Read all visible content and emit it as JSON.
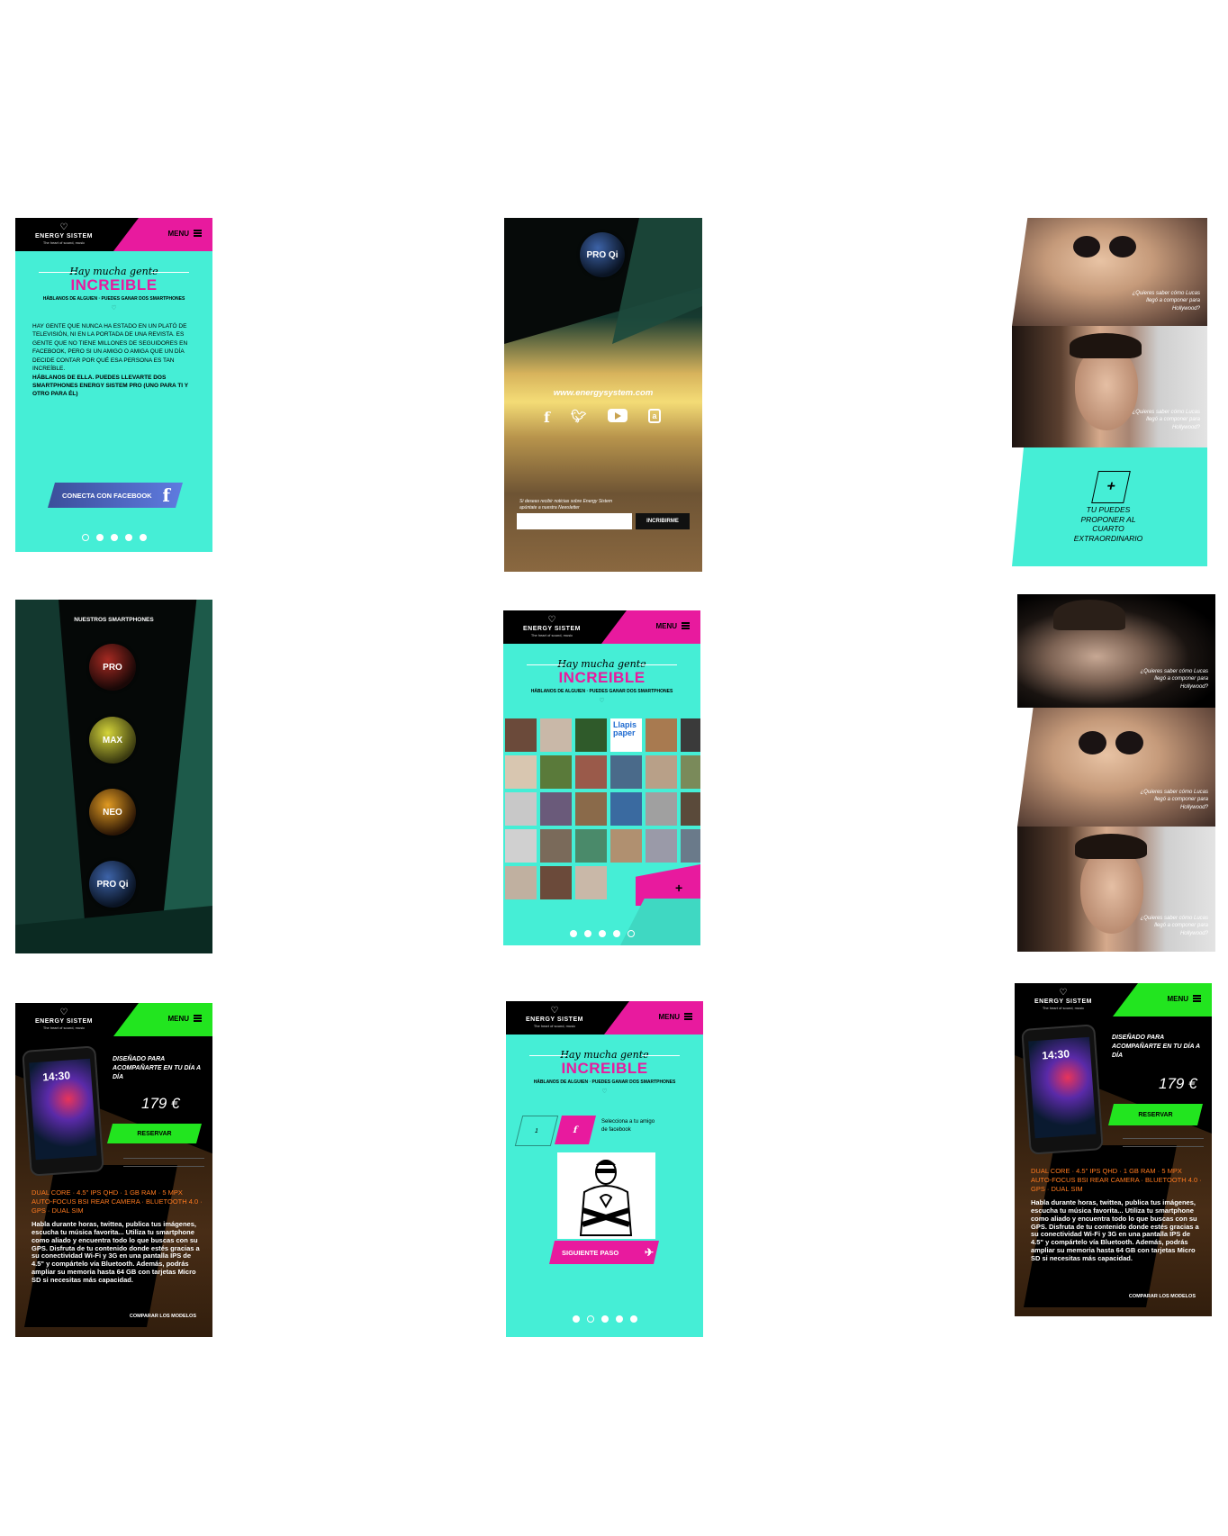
{
  "brand": {
    "name": "ENERGY SISTEM",
    "tagline": "The heart of sound, music",
    "menu": "MENU"
  },
  "campaign": {
    "script": "Hay mucha gente",
    "headline": "INCREIBLE",
    "subline": "HÁBLANOS DE ALGUIEN · PUEDES GANAR DOS SMARTPHONES"
  },
  "intro": {
    "body": "HAY GENTE QUE NUNCA HA ESTADO EN UN PLATÓ DE TELEVISIÓN, NI EN LA PORTADA DE UNA REVISTA. ES GENTE QUE NO TIENE MILLONES DE SEGUIDORES EN FACEBOOK, PERO SI UN AMIGO O AMIGA QUE UN DÍA DECIDE CONTAR POR QUÉ ESA PERSONA ES TAN INCREÍBLE.",
    "body_bold": "HÁBLANOS DE ELLA. PUEDES LLEVARTE DOS SMARTPHONES ENERGY SISTEM PRO (UNO PARA TI Y OTRO PARA ÉL)",
    "facebook_button": "CONECTA CON FACEBOOK",
    "facebook_glyph": "f"
  },
  "newsletter": {
    "product_badge": "PRO Qi",
    "url": "www.energysystem.com",
    "social_icons": [
      "facebook-icon",
      "twitter-icon",
      "youtube-icon",
      "energy-app-icon"
    ],
    "note": "Si deseas recibir noticias sobre Energy Sistem apúntate a nuestra Newsletter",
    "email_placeholder": "",
    "subscribe": "INCRIBIRME"
  },
  "stories": {
    "caption_line1": "¿Quieres saber cómo Lucas",
    "caption_line2": "llegó a componer para",
    "caption_line3": "Hollywood?",
    "cta_plus": "+",
    "cta_text": "TU PUEDES PROPONER AL CUARTO EXTRAORDINARIO"
  },
  "smartphones": {
    "heading": "NUESTROS SMARTPHONES",
    "models": [
      "PRO",
      "MAX",
      "NEO",
      "PRO Qi"
    ]
  },
  "gallery": {
    "tile_text": "Llapis paper",
    "plus": "+"
  },
  "step": {
    "step_number": "1",
    "facebook_glyph": "f",
    "instruction": "Selecciona a tu amigo de facebook",
    "next": "SIGUIENTE PASO"
  },
  "product": {
    "tagline": "DISEÑADO PARA ACOMPAÑARTE EN TU DÍA A DÍA",
    "price": "179 €",
    "reserve": "RESERVAR",
    "phone_time": "14:30",
    "specs": "DUAL CORE · 4.5\" IPS QHD · 1 GB RAM · 5 MPX AUTO-FOCUS BSI REAR CAMERA · BLUETOOTH 4.0 · GPS · DUAL SIM",
    "description": "Habla durante horas, twittea, publica tus imágenes, escucha tu música favorita... Utiliza tu smartphone como aliado y encuentra todo lo que buscas con su GPS. Disfruta de tu contenido donde estés gracias a su conectividad Wi-Fi y 3G en una pantalla IPS de 4.5\" y compártelo vía Bluetooth. Además, podrás ampliar su memoria hasta 64 GB con tarjetas Micro SD si necesitas más capacidad.",
    "compare": "COMPARAR LOS MODELOS"
  },
  "colors": {
    "turquoise": "#45eed6",
    "magenta": "#e81a9e",
    "green": "#22e51f",
    "orange": "#ff7a1f",
    "black": "#000000"
  }
}
